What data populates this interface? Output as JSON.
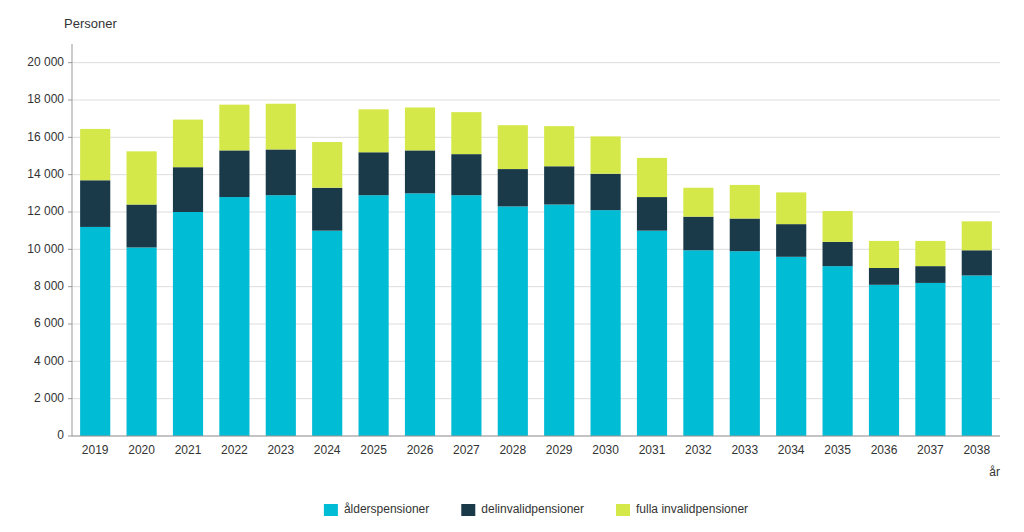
{
  "chart_data": {
    "type": "bar",
    "stacked": true,
    "categories": [
      "2019",
      "2020",
      "2021",
      "2022",
      "2023",
      "2024",
      "2025",
      "2026",
      "2027",
      "2028",
      "2029",
      "2030",
      "2031",
      "2032",
      "2033",
      "2034",
      "2035",
      "2036",
      "2037",
      "2038"
    ],
    "series": [
      {
        "name": "ålderspensioner",
        "color": "#00bcd4",
        "values": [
          11200,
          10100,
          12000,
          12800,
          12900,
          11000,
          12900,
          13000,
          12900,
          12300,
          12400,
          12100,
          11000,
          9950,
          9900,
          9600,
          9100,
          8100,
          8200,
          8600
        ]
      },
      {
        "name": "delinvalidpensioner",
        "color": "#1a3a4a",
        "values": [
          2500,
          2300,
          2400,
          2500,
          2450,
          2300,
          2300,
          2300,
          2200,
          2000,
          2050,
          1950,
          1800,
          1800,
          1750,
          1750,
          1300,
          900,
          900,
          1350
        ]
      },
      {
        "name": "fulla invalidpensioner",
        "color": "#d4e84a",
        "values": [
          2750,
          2850,
          2550,
          2450,
          2450,
          2450,
          2300,
          2300,
          2250,
          2350,
          2150,
          2000,
          2100,
          1550,
          1800,
          1700,
          1650,
          1450,
          1350,
          1550
        ]
      }
    ],
    "y_label": "Personer",
    "x_label": "år",
    "ylim": [
      0,
      21000
    ],
    "yticks": [
      0,
      {
        "value": 2000,
        "label": "2 000"
      },
      {
        "value": 4000,
        "label": "4 000"
      },
      {
        "value": 6000,
        "label": "6 000"
      },
      {
        "value": 8000,
        "label": "8 000"
      },
      {
        "value": 10000,
        "label": "10 000"
      },
      {
        "value": 12000,
        "label": "12 000"
      },
      {
        "value": 14000,
        "label": "14 000"
      },
      {
        "value": 16000,
        "label": "16 000"
      },
      {
        "value": 18000,
        "label": "18 000"
      },
      {
        "value": 20000,
        "label": "20 000"
      }
    ],
    "grid": true,
    "legend": "bottom"
  }
}
